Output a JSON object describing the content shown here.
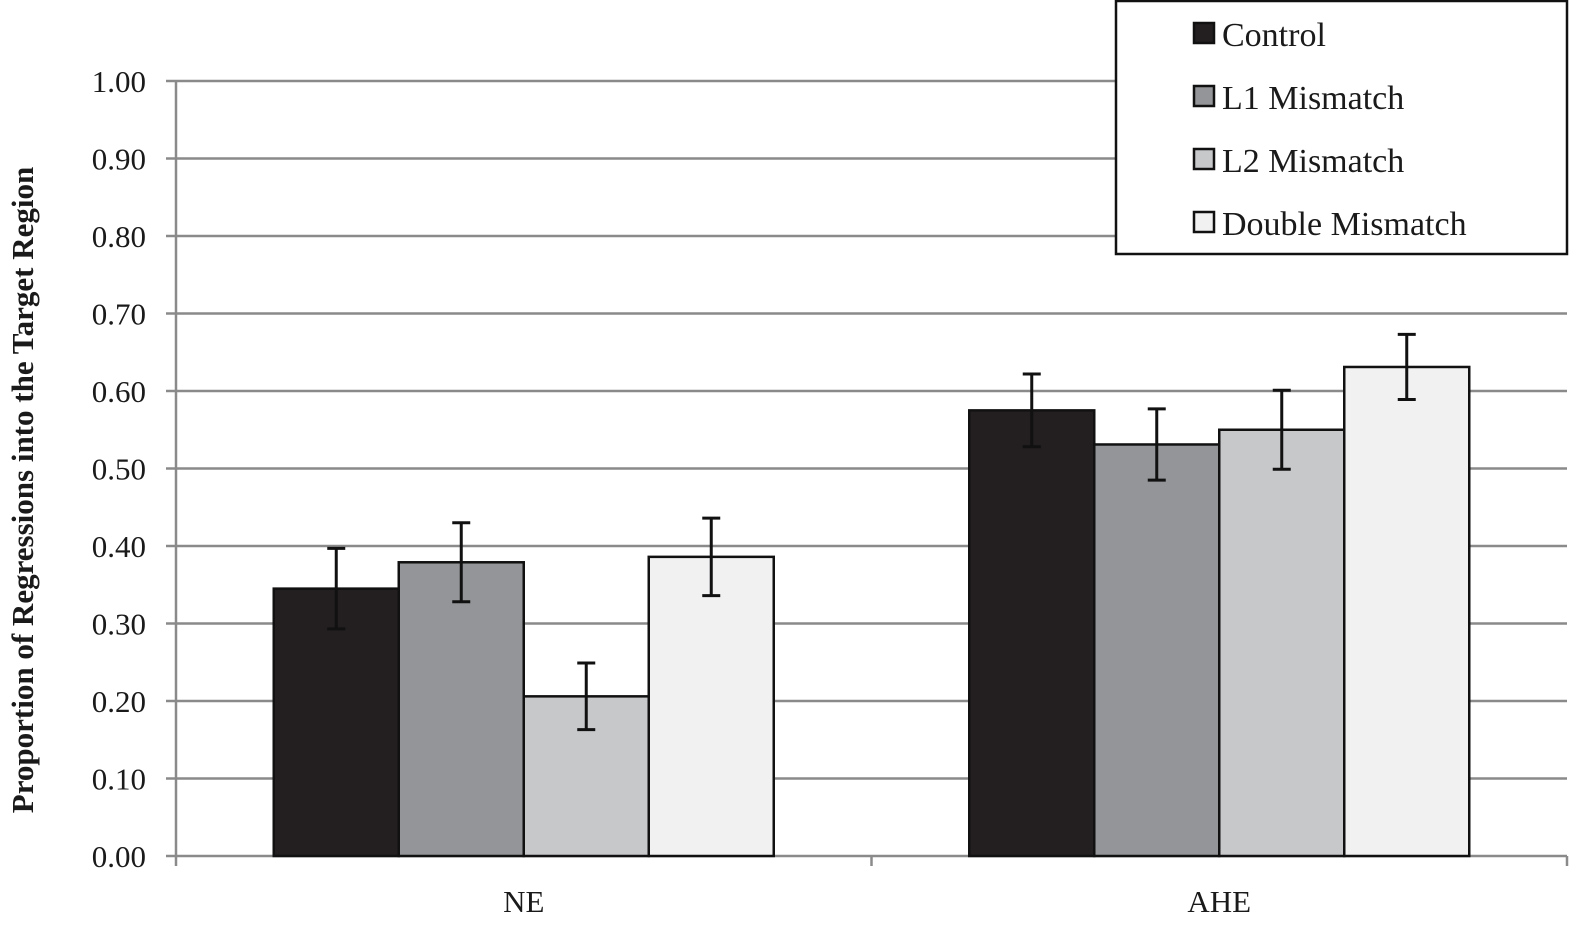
{
  "chart_data": {
    "type": "bar",
    "title": "",
    "xlabel": "",
    "ylabel": "Proportion of Regressions into the Target Region",
    "ylim": [
      0,
      1.0
    ],
    "yticks": [
      "0.00",
      "0.10",
      "0.20",
      "0.30",
      "0.40",
      "0.50",
      "0.60",
      "0.70",
      "0.80",
      "0.90",
      "1.00"
    ],
    "categories": [
      "NE",
      "AHE"
    ],
    "grid": true,
    "legend_position": "top-right",
    "series": [
      {
        "name": "Control",
        "color": "#231f20",
        "values": [
          0.345,
          0.575
        ],
        "error": [
          0.052,
          0.047
        ]
      },
      {
        "name": "L1 Mismatch",
        "color": "#939598",
        "values": [
          0.379,
          0.531
        ],
        "error": [
          0.051,
          0.046
        ]
      },
      {
        "name": "L2 Mismatch",
        "color": "#c7c8ca",
        "values": [
          0.206,
          0.55
        ],
        "error": [
          0.043,
          0.051
        ]
      },
      {
        "name": "Double Mismatch",
        "color": "#f1f1f2",
        "values": [
          0.386,
          0.631
        ],
        "error": [
          0.05,
          0.042
        ]
      }
    ]
  }
}
